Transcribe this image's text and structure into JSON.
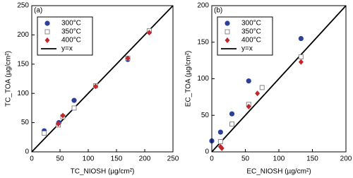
{
  "chart_data": [
    {
      "type": "scatter",
      "panel_label": "(a)",
      "x_label": "TC_NIOSH (µg/cm²)",
      "y_label": "TC_TOA (µg/cm²)",
      "xlim": [
        0,
        250
      ],
      "ylim": [
        0,
        250
      ],
      "xticks": [
        0,
        50,
        100,
        150,
        200,
        250
      ],
      "yticks": [
        0,
        50,
        100,
        150,
        200,
        250
      ],
      "reference_line": {
        "name": "y=x",
        "color": "#000000"
      },
      "series": [
        {
          "name": "300°C",
          "color": "#2b3f9e",
          "label_color": "#2b3f9e",
          "marker": "circle",
          "x": [
            22,
            48,
            75,
            170,
            208
          ],
          "values": [
            36,
            50,
            88,
            158,
            205
          ]
        },
        {
          "name": "350°C",
          "color": "#888888",
          "label_color": "#3a8a3a",
          "marker": "square",
          "x": [
            22,
            47,
            55,
            75,
            113,
            170,
            208
          ],
          "values": [
            32,
            46,
            60,
            75,
            113,
            160,
            207
          ]
        },
        {
          "name": "400°C",
          "color": "#c0262d",
          "label_color": "#c0262d",
          "marker": "diamond",
          "x": [
            47,
            55,
            113,
            170,
            208
          ],
          "values": [
            48,
            62,
            112,
            160,
            204
          ]
        }
      ]
    },
    {
      "type": "scatter",
      "panel_label": "(b)",
      "x_label": "EC_NIOSH (µg/cm²)",
      "y_label": "EC_TOA (µg/cm²)",
      "xlim": [
        0,
        200
      ],
      "ylim": [
        0,
        200
      ],
      "xticks": [
        0,
        50,
        100,
        150,
        200
      ],
      "yticks": [
        0,
        50,
        100,
        150,
        200
      ],
      "reference_line": {
        "name": "y=x",
        "color": "#000000"
      },
      "series": [
        {
          "name": "300°C",
          "color": "#2b3f9e",
          "label_color": "#2b3f9e",
          "marker": "circle",
          "x": [
            0,
            13,
            30,
            55,
            133
          ],
          "values": [
            15,
            27,
            52,
            97,
            155
          ]
        },
        {
          "name": "350°C",
          "color": "#888888",
          "label_color": "#3a8a3a",
          "marker": "square",
          "x": [
            13,
            30,
            55,
            75,
            133
          ],
          "values": [
            14,
            38,
            65,
            88,
            130
          ]
        },
        {
          "name": "400°C",
          "color": "#c0262d",
          "label_color": "#c0262d",
          "marker": "diamond",
          "x": [
            13,
            15,
            55,
            68,
            133
          ],
          "values": [
            7,
            5,
            62,
            80,
            123
          ]
        }
      ]
    }
  ]
}
